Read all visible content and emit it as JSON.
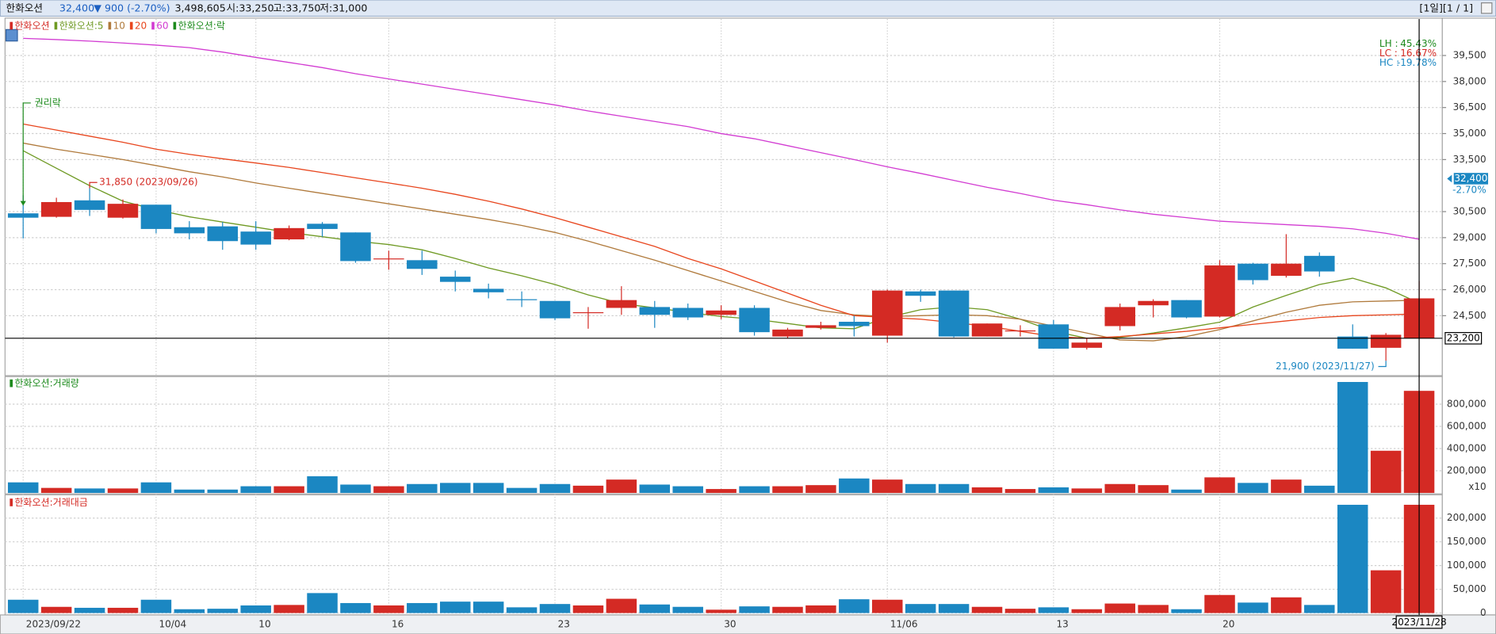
{
  "header": {
    "name": "한화오션",
    "price": "32,400",
    "change": "▼ 900 (-2.70%)",
    "volume": "3,498,605",
    "open": "시:33,250",
    "high": "고:33,750",
    "low": "저:31,000",
    "period": "[1일][1 / 1]"
  },
  "chart_data": [
    {
      "type": "candlestick",
      "name": "한화오션",
      "up_color": "#d42a24",
      "down_color": "#1b87c2",
      "categories": [
        "2023/09/22",
        null,
        null,
        null,
        "10/04",
        null,
        null,
        "10",
        null,
        null,
        null,
        "16",
        null,
        null,
        null,
        null,
        "23",
        null,
        null,
        null,
        null,
        "30",
        null,
        null,
        null,
        null,
        "11/06",
        null,
        null,
        null,
        null,
        "13",
        null,
        null,
        null,
        null,
        "20",
        null,
        null,
        null,
        null,
        null,
        null
      ],
      "open": [
        30400,
        30200,
        31150,
        30150,
        30900,
        29600,
        29650,
        29350,
        28900,
        29800,
        29300,
        27750,
        27700,
        26750,
        26050,
        25450,
        25350,
        24650,
        24950,
        25000,
        24950,
        24550,
        24950,
        23300,
        23800,
        24150,
        23350,
        25900,
        25950,
        23300,
        23600,
        24000,
        22650,
        23900,
        25100,
        25400,
        24450,
        27500,
        26800,
        27950,
        23300,
        22650,
        23200
      ],
      "high": [
        31450,
        31300,
        31850,
        31200,
        30900,
        29950,
        29900,
        29950,
        29700,
        29900,
        29300,
        28250,
        28250,
        27100,
        26350,
        25900,
        25350,
        25000,
        26200,
        25350,
        25200,
        25100,
        25100,
        23800,
        24150,
        24500,
        26000,
        26000,
        25950,
        24050,
        23950,
        24250,
        23200,
        25200,
        25450,
        25400,
        27700,
        27550,
        29200,
        28150,
        24000,
        23500,
        26500
      ],
      "low": [
        28950,
        30150,
        30250,
        30100,
        29250,
        28900,
        28300,
        28300,
        28850,
        29050,
        27550,
        27150,
        26850,
        25900,
        25500,
        25000,
        24250,
        23750,
        24550,
        23800,
        24250,
        24300,
        23350,
        23200,
        23700,
        23300,
        22950,
        25300,
        23250,
        23300,
        23300,
        22600,
        22550,
        23650,
        24400,
        24350,
        24400,
        26300,
        26700,
        26750,
        22600,
        21900,
        23200
      ],
      "close": [
        30150,
        31050,
        30600,
        30950,
        29500,
        29250,
        28800,
        28600,
        29550,
        29500,
        27650,
        27800,
        27200,
        26450,
        25850,
        25400,
        24350,
        24700,
        25400,
        24550,
        24400,
        24800,
        23550,
        23700,
        23950,
        23900,
        25950,
        25650,
        23300,
        24050,
        23650,
        22600,
        22950,
        25000,
        25350,
        24400,
        27400,
        26550,
        27500,
        27050,
        22600,
        23400,
        25500
      ],
      "series": [
        {
          "name": "한화오션:5",
          "color": "#6f9a24",
          "values": [
            34010,
            33000,
            32000,
            31100,
            30610,
            30200,
            29900,
            29600,
            29300,
            29050,
            28800,
            28600,
            28300,
            27800,
            27250,
            26800,
            26300,
            25700,
            25200,
            24950,
            24700,
            24450,
            24300,
            24050,
            23800,
            23750,
            24400,
            24850,
            25010,
            24850,
            24300,
            23600,
            23200,
            23250,
            23500,
            23800,
            24130,
            25000,
            25670,
            26300,
            26660,
            26100,
            25230
          ]
        },
        {
          "name": "10",
          "color": "#b07a3c",
          "values": [
            34450,
            34100,
            33800,
            33500,
            33150,
            32800,
            32500,
            32150,
            31850,
            31550,
            31250,
            30950,
            30650,
            30350,
            30050,
            29700,
            29300,
            28800,
            28250,
            27700,
            27100,
            26500,
            25900,
            25300,
            24800,
            24550,
            24450,
            24500,
            24550,
            24500,
            24300,
            23900,
            23500,
            23100,
            23050,
            23300,
            23700,
            24200,
            24700,
            25100,
            25300,
            25350,
            25390
          ]
        },
        {
          "name": "20",
          "color": "#e8461e",
          "values": [
            35550,
            35200,
            34850,
            34500,
            34100,
            33800,
            33550,
            33300,
            33050,
            32750,
            32450,
            32150,
            31850,
            31500,
            31100,
            30650,
            30150,
            29600,
            29050,
            28500,
            27800,
            27200,
            26500,
            25800,
            25100,
            24500,
            24400,
            24300,
            24100,
            23900,
            23600,
            23300,
            23200,
            23300,
            23450,
            23600,
            23800,
            24000,
            24200,
            24400,
            24500,
            24550,
            24600
          ]
        },
        {
          "name": "60",
          "color": "#d23cd2",
          "values": [
            40490,
            40420,
            40330,
            40220,
            40100,
            39950,
            39700,
            39390,
            39100,
            38800,
            38450,
            38150,
            37850,
            37550,
            37250,
            36950,
            36650,
            36300,
            36000,
            35700,
            35400,
            35000,
            34700,
            34300,
            33900,
            33500,
            33080,
            32700,
            32300,
            31900,
            31550,
            31160,
            30900,
            30600,
            30350,
            30150,
            29950,
            29850,
            29750,
            29650,
            29510,
            29250,
            28910
          ]
        }
      ],
      "adjustment_name": "한화오션:락",
      "adjustment_label": "권리락",
      "adjustment_color": "#1c8a1c",
      "ylim": [
        21100,
        41600
      ],
      "yticks": [
        {
          "value": 39500,
          "label": "39,500"
        },
        {
          "value": 38000,
          "label": "38,000"
        },
        {
          "value": 36500,
          "label": "36,500"
        },
        {
          "value": 35000,
          "label": "35,000"
        },
        {
          "value": 33500,
          "label": "33,500"
        },
        {
          "value": 30500,
          "label": "30,500"
        },
        {
          "value": 29000,
          "label": "29,000"
        },
        {
          "value": 27500,
          "label": "27,500"
        },
        {
          "value": 26000,
          "label": "26,000"
        },
        {
          "value": 24500,
          "label": "24,500"
        }
      ],
      "grid": true,
      "max_label": {
        "value": 31850,
        "label": "31,850 (2023/09/26)"
      },
      "min_label": {
        "value": 21900,
        "label": "21,900 (2023/11/27)"
      },
      "hline": {
        "value": 23200,
        "label": "23,200"
      },
      "current": {
        "value": 32400,
        "label": "32,400",
        "change": "-2.70%"
      },
      "stats": [
        {
          "name": "LH :",
          "text": "45.43%",
          "color": "#1c8a1c"
        },
        {
          "name": "LC :",
          "text": "16.67%",
          "color": "#d42a24"
        },
        {
          "name": "HC :",
          "text": "-19.78%",
          "color": "#1b87c2"
        }
      ],
      "cursor_label": "2023/11/28"
    },
    {
      "type": "bar",
      "title": "한화오션:거래량",
      "title_color": "#1c8a1c",
      "unit_label": "x10",
      "values": [
        95000,
        45000,
        40000,
        40000,
        95000,
        30000,
        30000,
        60000,
        60000,
        150000,
        75000,
        60000,
        80000,
        90000,
        90000,
        45000,
        80000,
        65000,
        120000,
        75000,
        60000,
        35000,
        60000,
        60000,
        70000,
        130000,
        120000,
        80000,
        80000,
        50000,
        35000,
        50000,
        40000,
        80000,
        70000,
        30000,
        140000,
        90000,
        120000,
        65000,
        1000000,
        380000,
        920000
      ],
      "ylim": [
        0,
        1040000
      ],
      "yticks": [
        {
          "value": 200000,
          "label": "200,000"
        },
        {
          "value": 400000,
          "label": "400,000"
        },
        {
          "value": 600000,
          "label": "600,000"
        },
        {
          "value": 800000,
          "label": "800,000"
        }
      ]
    },
    {
      "type": "bar",
      "title": "한화오션:거래대금",
      "title_color": "#d42a24",
      "values": [
        28000,
        13000,
        11000,
        11000,
        28000,
        8000,
        9000,
        16000,
        17000,
        42000,
        21000,
        16000,
        21000,
        24000,
        24000,
        12000,
        19000,
        16000,
        30000,
        18000,
        13000,
        7000,
        14000,
        13000,
        16000,
        29000,
        28000,
        19000,
        19000,
        13000,
        9000,
        12000,
        8000,
        20000,
        17000,
        8000,
        38000,
        22000,
        33000,
        17000,
        228000,
        90000,
        228000
      ],
      "ylim": [
        0,
        245000
      ],
      "yticks": [
        0,
        {
          "value": 50000,
          "label": "50,000"
        },
        {
          "value": 100000,
          "label": "100,000"
        },
        {
          "value": 150000,
          "label": "150,000"
        },
        {
          "value": 200000,
          "label": "200,000"
        }
      ]
    }
  ]
}
